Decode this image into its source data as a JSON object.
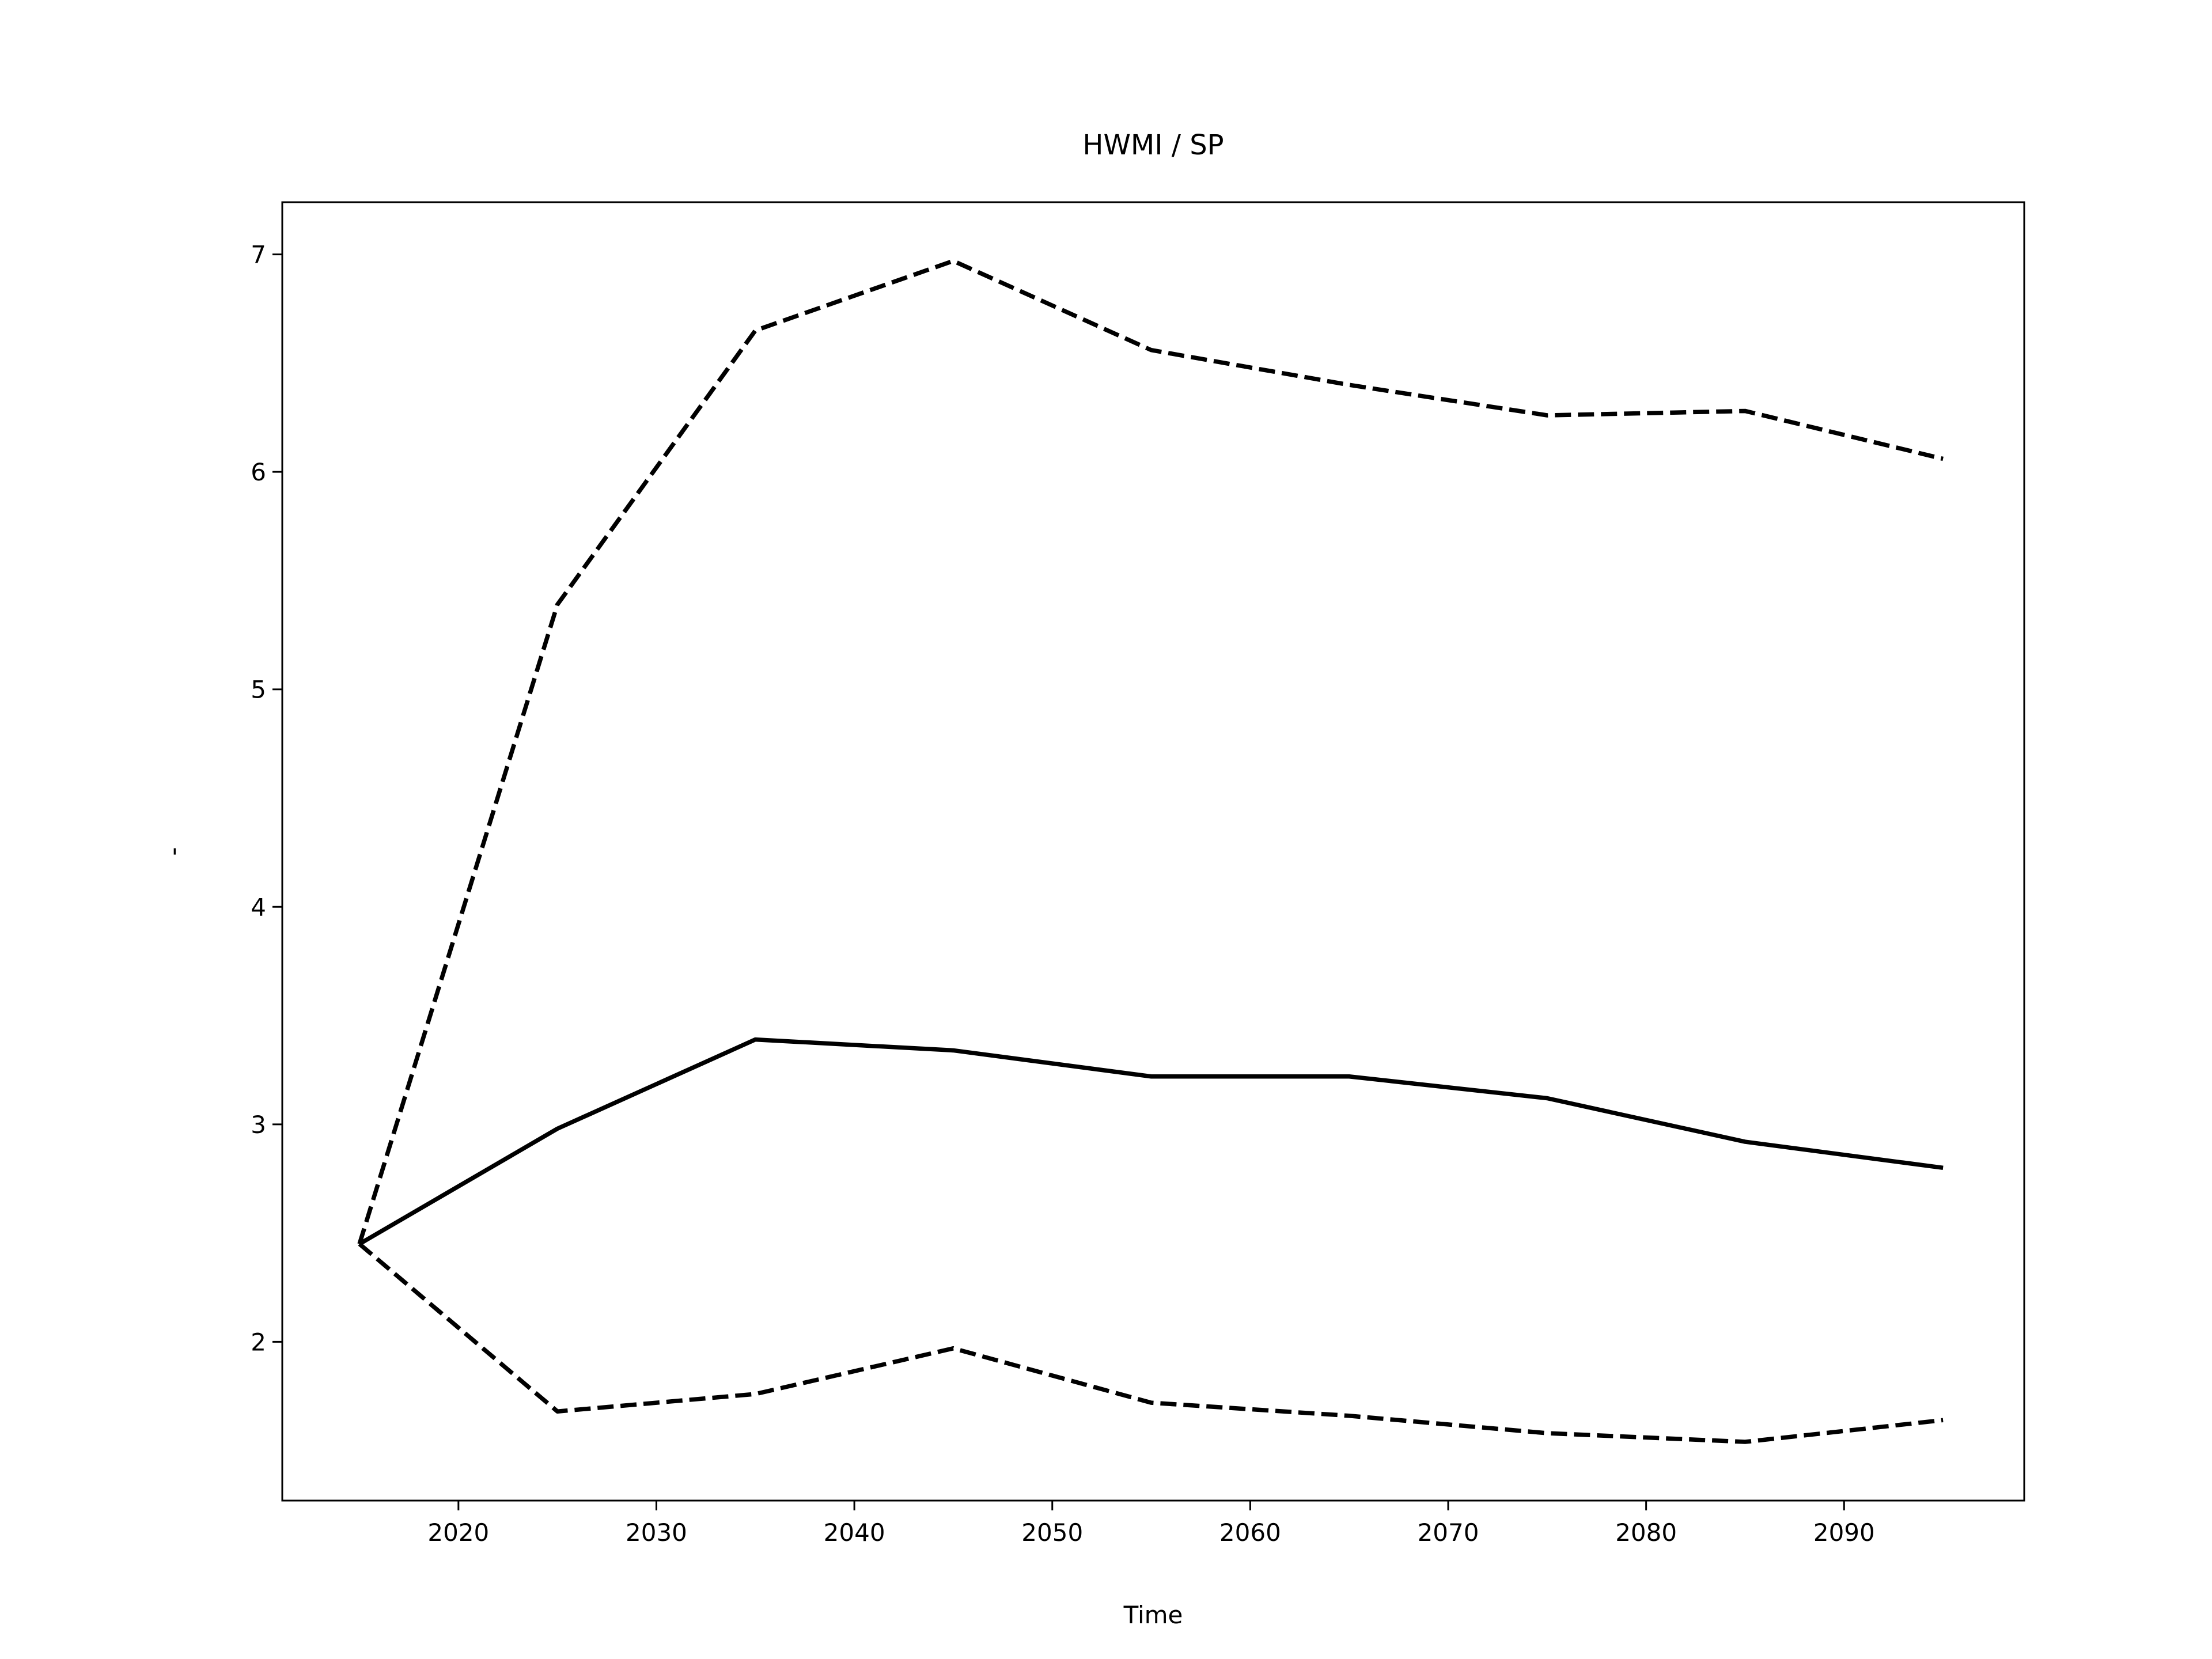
{
  "chart_data": {
    "type": "line",
    "title": "HWMI / SP",
    "xlabel": "Time",
    "ylabel": "-",
    "x": [
      2015,
      2025,
      2035,
      2045,
      2055,
      2065,
      2075,
      2085,
      2095
    ],
    "series": [
      {
        "color": "#000000",
        "linestyle": "solid",
        "values": [
          2.45,
          2.98,
          3.39,
          3.34,
          3.22,
          3.22,
          3.12,
          2.92,
          2.8
        ]
      },
      {
        "color": "#000000",
        "linestyle": "dashed",
        "values": [
          2.45,
          5.39,
          6.65,
          6.97,
          6.56,
          6.4,
          6.26,
          6.28,
          6.06
        ]
      },
      {
        "color": "#000000",
        "linestyle": "dashed",
        "values": [
          2.45,
          1.68,
          1.76,
          1.97,
          1.72,
          1.66,
          1.58,
          1.54,
          1.64
        ]
      }
    ],
    "xlim": [
      2011.1,
      2099.1
    ],
    "ylim": [
      1.27,
      7.24
    ],
    "xticks": [
      2020,
      2030,
      2040,
      2050,
      2060,
      2070,
      2080,
      2090
    ],
    "yticks": [
      2,
      3,
      4,
      5,
      6,
      7
    ],
    "grid": false
  }
}
